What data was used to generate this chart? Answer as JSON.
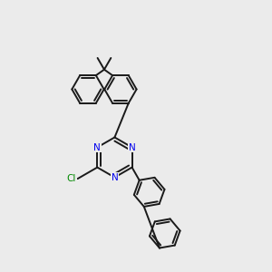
{
  "bg_color": "#ebebeb",
  "bond_color": "#1a1a1a",
  "nitrogen_color": "#0000ee",
  "chlorine_color": "#008800",
  "lw": 1.4,
  "figsize": [
    3.0,
    3.0
  ],
  "dpi": 100,
  "xlim": [
    0,
    10
  ],
  "ylim": [
    0,
    10
  ]
}
